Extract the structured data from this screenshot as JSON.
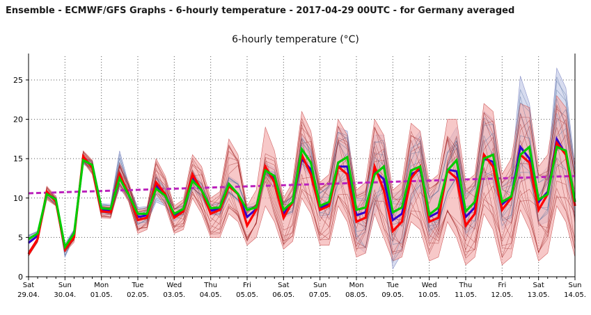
{
  "header": {
    "title": "Ensemble - ECMWF/GFS Graphs - 6-hourly temperature - 2017-04-29 00UTC - for Germany averaged"
  },
  "colors": {
    "ecmwf_members": "#9c1c1c",
    "ecmwf_spread": "#f4b0b0",
    "gfs_members": "#4a6a9a",
    "gfs_spread": "#c6cde8",
    "ecmwf_main": "#ff0000",
    "gfs_main": "#00cc00",
    "mean": "#3300cc",
    "climate": "#bb22bb",
    "grid": "#555555"
  },
  "chart_data": {
    "type": "line",
    "title": "6-hourly temperature (°C)",
    "xlabel": "",
    "ylabel": "",
    "ylim": [
      0,
      28
    ],
    "yticks": [
      0,
      5,
      10,
      15,
      20,
      25
    ],
    "x_step_hours": 6,
    "x_points": 61,
    "grid": "dotted",
    "x_labels": [
      {
        "day": "Sat",
        "date": "29.04."
      },
      {
        "day": "Sun",
        "date": "30.04."
      },
      {
        "day": "Mon",
        "date": "01.05."
      },
      {
        "day": "Tue",
        "date": "02.05."
      },
      {
        "day": "Wed",
        "date": "03.05."
      },
      {
        "day": "Thu",
        "date": "04.05."
      },
      {
        "day": "Fri",
        "date": "05.05."
      },
      {
        "day": "Sat",
        "date": "06.05."
      },
      {
        "day": "Sun",
        "date": "07.05."
      },
      {
        "day": "Mon",
        "date": "08.05."
      },
      {
        "day": "Tue",
        "date": "09.05."
      },
      {
        "day": "Wed",
        "date": "10.05."
      },
      {
        "day": "Thu",
        "date": "11.05."
      },
      {
        "day": "Fri",
        "date": "12.05."
      },
      {
        "day": "Sat",
        "date": "13.05."
      },
      {
        "day": "Sun",
        "date": "14.05."
      }
    ],
    "series": [
      {
        "role": "ecmwf",
        "values": [
          2.9,
          4.8,
          10.8,
          9.5,
          3.5,
          5.0,
          15.3,
          13.8,
          8.3,
          8.2,
          13.0,
          10.5,
          7.2,
          7.5,
          12.0,
          10.5,
          7.5,
          8.3,
          13.0,
          11.0,
          8.0,
          8.5,
          11.5,
          10.5,
          6.5,
          8.5,
          14.0,
          12.0,
          7.5,
          9.5,
          15.5,
          13.0,
          8.5,
          9.0,
          14.0,
          13.0,
          7.0,
          7.5,
          14.0,
          11.0,
          5.8,
          7.0,
          12.5,
          14.0,
          7.0,
          7.5,
          13.5,
          12.5,
          6.5,
          8.0,
          15.5,
          14.0,
          8.5,
          10.0,
          15.5,
          14.5,
          8.5,
          10.5,
          17.0,
          15.5,
          9.0
        ]
      },
      {
        "role": "gfs",
        "values": [
          4.8,
          5.5,
          10.5,
          9.8,
          3.8,
          5.5,
          14.8,
          14.2,
          8.7,
          8.6,
          12.5,
          10.4,
          8.0,
          8.0,
          11.2,
          10.3,
          8.0,
          8.6,
          12.2,
          11.0,
          8.7,
          8.8,
          11.8,
          10.5,
          8.5,
          8.8,
          13.5,
          12.8,
          8.5,
          9.5,
          16.2,
          14.5,
          9.0,
          9.5,
          14.5,
          15.2,
          8.5,
          8.8,
          13.0,
          14.0,
          8.2,
          8.8,
          13.5,
          14.0,
          7.9,
          8.8,
          13.5,
          14.8,
          8.3,
          9.5,
          15.0,
          15.5,
          9.5,
          10.2,
          15.5,
          16.5,
          9.8,
          10.5,
          16.5,
          16.0,
          9.5
        ]
      },
      {
        "role": "mean",
        "values": [
          4.3,
          5.2,
          10.6,
          9.6,
          3.7,
          5.3,
          15.0,
          14.0,
          8.5,
          8.4,
          12.8,
          10.4,
          7.6,
          7.8,
          11.6,
          10.4,
          7.8,
          8.4,
          12.6,
          11.0,
          8.4,
          8.6,
          11.6,
          10.5,
          7.6,
          8.6,
          13.6,
          12.4,
          8.0,
          9.5,
          15.0,
          13.6,
          8.8,
          9.2,
          14.0,
          14.0,
          7.8,
          8.2,
          13.4,
          12.4,
          7.2,
          8.0,
          13.0,
          13.6,
          7.6,
          8.2,
          13.6,
          13.4,
          7.6,
          8.8,
          15.0,
          14.6,
          9.2,
          10.2,
          16.5,
          15.0,
          9.5,
          10.8,
          17.5,
          15.5,
          9.5
        ]
      },
      {
        "role": "climate",
        "values": [
          10.6,
          12.8
        ]
      }
    ],
    "ensemble_envelope": {
      "ecmwf": {
        "upper": [
          3.2,
          5.0,
          11.5,
          10.2,
          3.8,
          5.8,
          16.0,
          14.8,
          9.0,
          9.0,
          14.5,
          12.0,
          8.5,
          8.8,
          15.0,
          12.8,
          9.0,
          9.8,
          15.5,
          14.0,
          10.0,
          10.8,
          17.5,
          15.5,
          9.0,
          11.0,
          19.0,
          16.0,
          10.0,
          12.0,
          21.0,
          18.5,
          12.0,
          13.0,
          20.0,
          18.0,
          11.0,
          12.0,
          20.0,
          18.0,
          11.0,
          12.0,
          19.5,
          18.5,
          12.0,
          13.0,
          20.0,
          20.0,
          12.0,
          13.0,
          22.0,
          21.0,
          13.0,
          15.0,
          22.0,
          21.5,
          14.0,
          15.5,
          23.0,
          21.5,
          14.0
        ],
        "lower": [
          2.6,
          4.4,
          9.8,
          9.0,
          3.1,
          4.4,
          14.6,
          13.0,
          7.5,
          7.4,
          11.5,
          9.5,
          5.5,
          6.0,
          10.5,
          9.0,
          5.5,
          6.0,
          10.0,
          8.0,
          5.0,
          5.0,
          8.0,
          7.0,
          4.0,
          5.0,
          9.0,
          7.0,
          3.5,
          4.5,
          10.0,
          8.0,
          4.0,
          4.0,
          9.0,
          7.0,
          2.5,
          3.0,
          8.0,
          5.0,
          2.0,
          2.5,
          7.0,
          6.0,
          2.0,
          2.5,
          7.0,
          5.0,
          1.5,
          2.5,
          8.0,
          6.0,
          1.5,
          2.5,
          8.5,
          6.0,
          2.0,
          3.0,
          9.0,
          7.0,
          2.5
        ]
      },
      "gfs": {
        "upper": [
          5.3,
          5.8,
          10.8,
          10.3,
          4.2,
          6.0,
          15.2,
          14.8,
          9.3,
          9.2,
          16.0,
          11.8,
          8.8,
          8.9,
          13.0,
          11.5,
          8.8,
          9.2,
          13.5,
          12.0,
          9.3,
          9.5,
          12.8,
          12.0,
          9.0,
          9.5,
          14.5,
          13.8,
          9.5,
          10.5,
          18.0,
          16.5,
          11.0,
          12.0,
          19.0,
          18.5,
          10.5,
          11.0,
          18.0,
          18.0,
          10.5,
          11.0,
          17.0,
          18.5,
          10.5,
          11.5,
          17.0,
          19.0,
          11.0,
          12.0,
          21.0,
          20.0,
          12.0,
          13.0,
          25.5,
          22.0,
          12.5,
          14.0,
          26.5,
          24.0,
          14.0
        ],
        "lower": [
          4.4,
          5.1,
          10.1,
          9.2,
          2.5,
          5.0,
          14.3,
          13.6,
          8.0,
          7.8,
          11.2,
          9.8,
          6.3,
          6.8,
          9.5,
          9.0,
          7.0,
          7.8,
          11.0,
          10.0,
          7.8,
          7.8,
          10.5,
          9.5,
          7.5,
          7.8,
          12.0,
          11.5,
          7.5,
          8.0,
          14.0,
          12.5,
          7.5,
          7.5,
          11.0,
          12.0,
          4.0,
          3.0,
          8.0,
          10.0,
          1.0,
          3.0,
          9.0,
          11.0,
          4.5,
          5.5,
          10.0,
          12.0,
          5.0,
          6.0,
          11.5,
          12.0,
          6.0,
          7.0,
          12.0,
          12.5,
          6.5,
          7.0,
          13.0,
          12.5,
          7.0
        ]
      }
    }
  }
}
